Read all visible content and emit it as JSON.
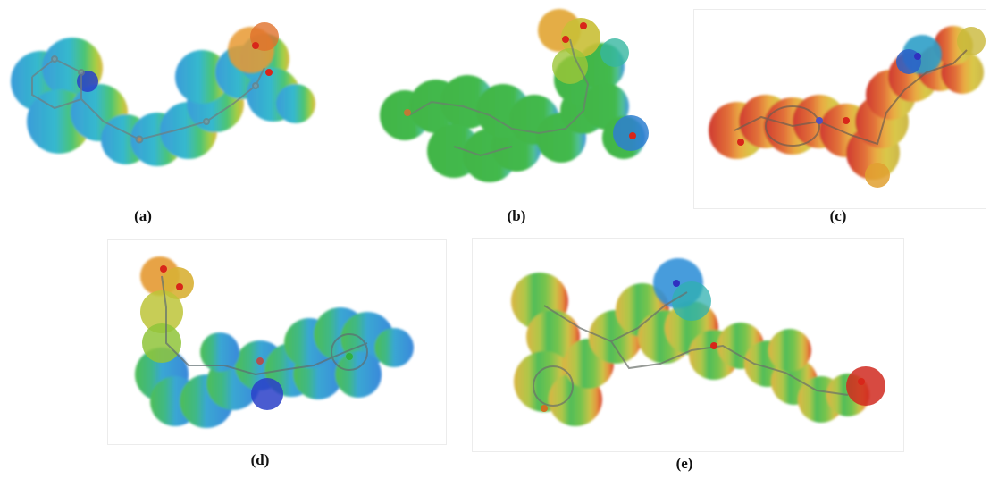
{
  "figure": {
    "panels": [
      {
        "id": "a",
        "label": "(a)"
      },
      {
        "id": "b",
        "label": "(b)"
      },
      {
        "id": "c",
        "label": "(c)"
      },
      {
        "id": "d",
        "label": "(d)"
      },
      {
        "id": "e",
        "label": "(e)"
      }
    ]
  },
  "colors": {
    "background": "#ffffff",
    "blue": "#2f8fd8",
    "dark_blue": "#2a3fc8",
    "cyan": "#2fb8d6",
    "green": "#2fb33a",
    "yellow_green": "#b9c834",
    "yellow": "#e6c43a",
    "orange": "#e07b2a",
    "red": "#d62a1e",
    "atom_gray": "#7f8a8a"
  }
}
